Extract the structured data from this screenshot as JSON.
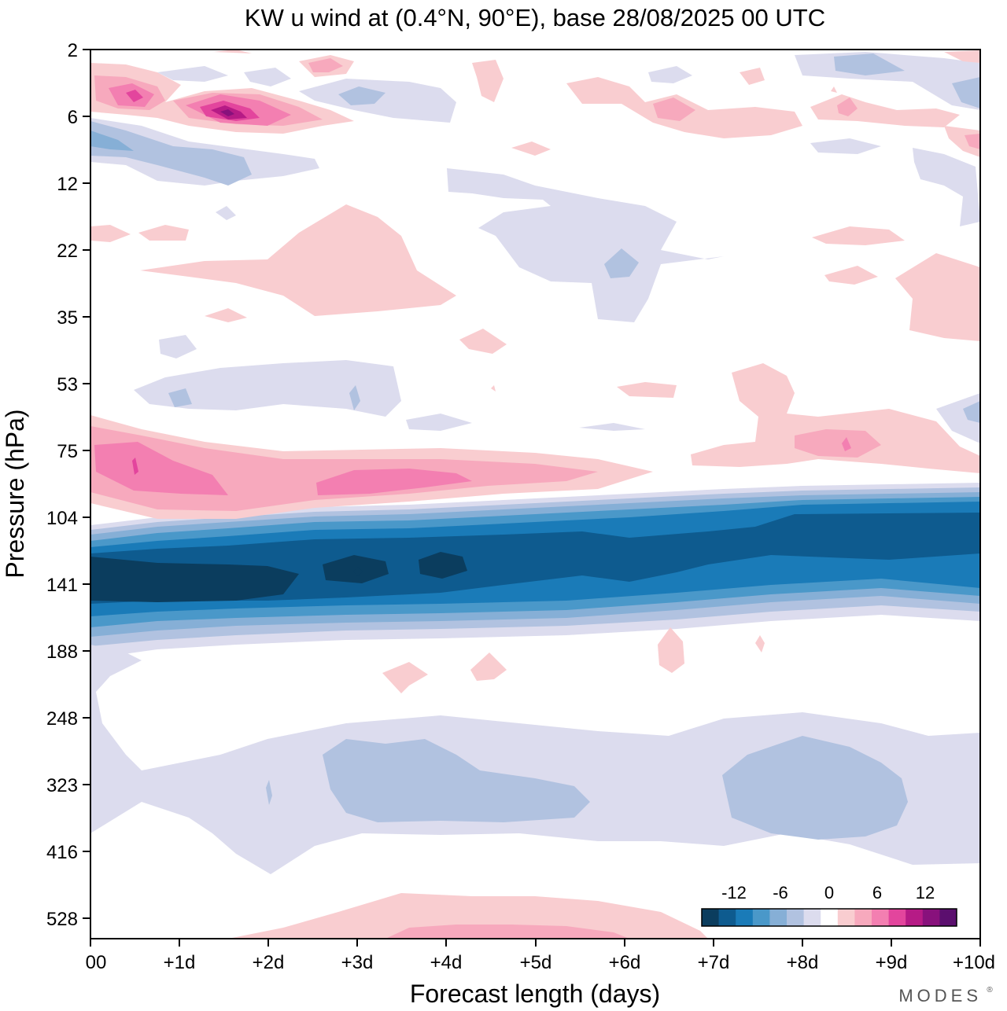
{
  "chart_data": {
    "type": "contour",
    "title": "KW u wind at (0.4°N, 90°E),  base 28/08/2025  00 UTC",
    "xlabel": "Forecast length (days)",
    "ylabel": "Pressure (hPa)",
    "x_ticks": [
      "00",
      "+1d",
      "+2d",
      "+3d",
      "+4d",
      "+5d",
      "+6d",
      "+7d",
      "+8d",
      "+9d",
      "+10d"
    ],
    "x_range_days": [
      0,
      10
    ],
    "y_ticks": [
      "2",
      "6",
      "12",
      "22",
      "35",
      "53",
      "75",
      "104",
      "141",
      "188",
      "248",
      "323",
      "416",
      "528"
    ],
    "y_scale": "log-pressure, 2 at top to ~700 at bottom",
    "colorbar": {
      "labels": [
        {
          "text": "-12",
          "value": -12
        },
        {
          "text": "-6",
          "value": -6
        },
        {
          "text": "0",
          "value": 0
        },
        {
          "text": "6",
          "value": 6
        },
        {
          "text": "12",
          "value": 12
        }
      ],
      "levels": [
        -14,
        -12,
        -10,
        -8,
        -6,
        -4,
        -2,
        2,
        4,
        6,
        8,
        10,
        12,
        14
      ],
      "colors": [
        "#0b3d5e",
        "#0e5b8f",
        "#1a7bb8",
        "#4a98c9",
        "#86afd6",
        "#b1c2e0",
        "#dcdcee",
        "#ffffff",
        "#f9cdd0",
        "#f7a9bd",
        "#f37fb1",
        "#e3459d",
        "#b61b86",
        "#88117c",
        "#5b0f6e"
      ]
    },
    "features": [
      {
        "name": "Westerly jet ~80 hPa",
        "sign": "positive",
        "peak_ms": 8,
        "days": [
          0,
          7
        ]
      },
      {
        "name": "Easterly jet ~141 hPa",
        "sign": "negative",
        "peak_ms": -14,
        "days": [
          0,
          10
        ]
      },
      {
        "name": "Upper stratosphere westerly ~6 hPa",
        "sign": "positive",
        "peak_ms": 12,
        "days": [
          0,
          3
        ]
      },
      {
        "name": "Mid-troposphere weak easterlies ~323 hPa",
        "sign": "negative",
        "peak_ms": -4,
        "days": [
          0,
          10
        ]
      }
    ]
  },
  "branding": {
    "text": "MODES"
  }
}
